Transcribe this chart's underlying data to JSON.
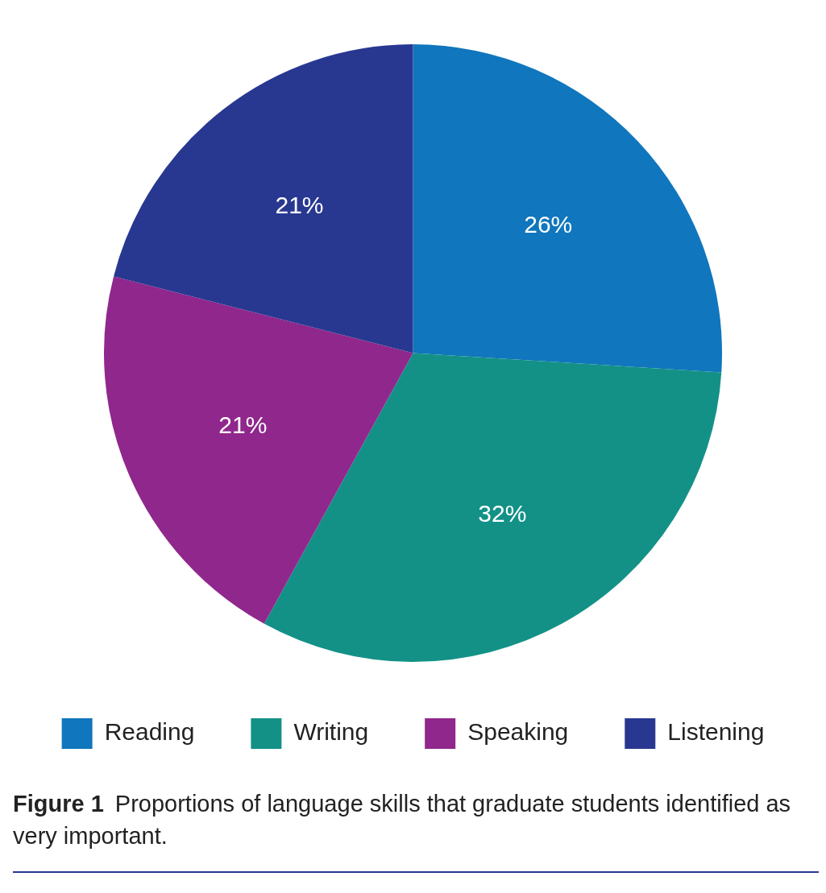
{
  "chart_data": {
    "type": "pie",
    "title": "Figure 1",
    "subtitle": "Proportions of language skills that graduate students identified as very important.",
    "categories": [
      "Reading",
      "Writing",
      "Speaking",
      "Listening"
    ],
    "values": [
      26,
      32,
      21,
      21
    ],
    "colors": [
      "#1076bd",
      "#139187",
      "#90278c",
      "#283891"
    ],
    "value_labels": [
      "26%",
      "32%",
      "21%",
      "21%"
    ],
    "legend": "bottom"
  }
}
